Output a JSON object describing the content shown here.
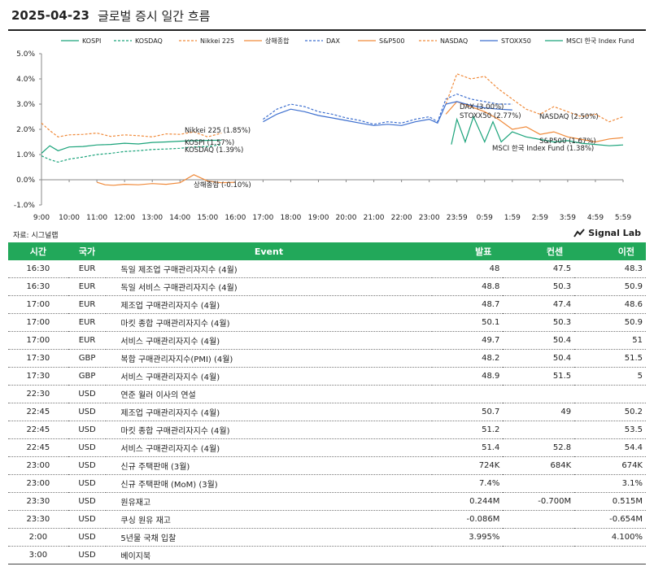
{
  "header": {
    "date": "2025-04-23",
    "title": "글로벌 증시 일간 흐름"
  },
  "source_label": "자료: 시그널랩",
  "brand": "Signal Lab",
  "chart_data": {
    "type": "line",
    "x_ticks": [
      "9:00",
      "10:00",
      "11:00",
      "12:00",
      "13:00",
      "14:00",
      "15:00",
      "16:00",
      "17:00",
      "18:00",
      "19:00",
      "20:00",
      "21:00",
      "22:00",
      "23:00",
      "23:59",
      "0:59",
      "1:59",
      "2:59",
      "3:59",
      "4:59",
      "5:59"
    ],
    "y_ticks": [
      "-1.0%",
      "0.0%",
      "1.0%",
      "2.0%",
      "3.0%",
      "4.0%",
      "5.0%"
    ],
    "ylim": [
      -1.0,
      5.0
    ],
    "xlim": [
      0,
      21
    ],
    "grid": false,
    "legend_position": "top",
    "series": [
      {
        "name": "KOSPI",
        "color": "#1aa37a",
        "style": "solid",
        "x": [
          0,
          0.3,
          0.6,
          1,
          1.5,
          2,
          2.5,
          3,
          3.5,
          4,
          4.5,
          5,
          5.5,
          6,
          6.5
        ],
        "y": [
          1.05,
          1.35,
          1.15,
          1.3,
          1.32,
          1.38,
          1.4,
          1.45,
          1.42,
          1.48,
          1.5,
          1.53,
          1.55,
          1.56,
          1.57
        ],
        "end_label": "KOSPI (1.57%)"
      },
      {
        "name": "KOSDAQ",
        "color": "#1aa37a",
        "style": "dash",
        "x": [
          0,
          0.3,
          0.6,
          1,
          1.5,
          2,
          2.5,
          3,
          3.5,
          4,
          4.5,
          5,
          5.5,
          6,
          6.5
        ],
        "y": [
          0.95,
          0.8,
          0.7,
          0.82,
          0.9,
          1.0,
          1.05,
          1.12,
          1.15,
          1.2,
          1.22,
          1.25,
          1.3,
          1.32,
          1.39
        ],
        "end_label": "KOSDAQ (1.39%)"
      },
      {
        "name": "Nikkei 225",
        "color": "#f08a3a",
        "style": "dash",
        "x": [
          0,
          0.3,
          0.6,
          1,
          1.5,
          2,
          2.5,
          3,
          3.5,
          4,
          4.5,
          5,
          5.5,
          6,
          6.5
        ],
        "y": [
          2.25,
          1.95,
          1.7,
          1.78,
          1.8,
          1.85,
          1.72,
          1.78,
          1.75,
          1.7,
          1.82,
          1.8,
          1.9,
          1.7,
          1.85
        ],
        "end_label": "Nikkei 225 (1.85%)"
      },
      {
        "name": "상해종합",
        "color": "#f08a3a",
        "style": "solid",
        "x": [
          2,
          2.3,
          2.6,
          3,
          3.5,
          4,
          4.5,
          5,
          5.5,
          6,
          6.5,
          7
        ],
        "y": [
          -0.1,
          -0.2,
          -0.22,
          -0.18,
          -0.2,
          -0.15,
          -0.18,
          -0.12,
          0.2,
          -0.05,
          -0.12,
          -0.1
        ],
        "end_label": "상해종합 (-0.10%)"
      },
      {
        "name": "DAX",
        "color": "#3d6fcf",
        "style": "dash",
        "x": [
          8,
          8.5,
          9,
          9.5,
          10,
          10.5,
          11,
          11.5,
          12,
          12.5,
          13,
          13.5,
          14,
          14.3,
          14.6,
          15,
          15.5,
          16,
          16.5,
          17
        ],
        "y": [
          2.4,
          2.8,
          3.0,
          2.9,
          2.7,
          2.6,
          2.45,
          2.35,
          2.2,
          2.3,
          2.25,
          2.4,
          2.5,
          2.3,
          3.2,
          3.4,
          3.2,
          3.1,
          3.0,
          3.0
        ],
        "end_label": "DAX (3.00%)"
      },
      {
        "name": "S&P500",
        "color": "#f08a3a",
        "style": "solid",
        "x": [
          14.6,
          15,
          15.5,
          16,
          16.5,
          17,
          17.5,
          18,
          18.5,
          19,
          19.5,
          20,
          20.5,
          21
        ],
        "y": [
          2.6,
          3.1,
          2.9,
          2.7,
          2.4,
          2.0,
          2.1,
          1.8,
          1.9,
          1.7,
          1.6,
          1.5,
          1.62,
          1.67
        ],
        "end_label": "S&P500 (1.67%)"
      },
      {
        "name": "NASDAQ",
        "color": "#f08a3a",
        "style": "dash",
        "x": [
          14.6,
          15,
          15.5,
          16,
          16.5,
          17,
          17.5,
          18,
          18.5,
          19,
          19.5,
          20,
          20.5,
          21
        ],
        "y": [
          3.0,
          4.2,
          4.0,
          4.1,
          3.6,
          3.2,
          2.8,
          2.6,
          2.9,
          2.7,
          2.5,
          2.6,
          2.3,
          2.5
        ],
        "end_label": "NASDAQ (2.50%)"
      },
      {
        "name": "STOXX50",
        "color": "#3d6fcf",
        "style": "solid",
        "x": [
          8,
          8.5,
          9,
          9.5,
          10,
          10.5,
          11,
          11.5,
          12,
          12.5,
          13,
          13.5,
          14,
          14.3,
          14.6,
          15,
          15.5,
          16,
          16.5,
          17
        ],
        "y": [
          2.3,
          2.6,
          2.8,
          2.7,
          2.55,
          2.45,
          2.35,
          2.25,
          2.15,
          2.2,
          2.15,
          2.3,
          2.4,
          2.25,
          3.0,
          3.1,
          2.95,
          2.85,
          2.8,
          2.77
        ],
        "end_label": "STOXX50 (2.77%)"
      },
      {
        "name": "MSCI 한국 Index Fund",
        "color": "#1aa37a",
        "style": "solid",
        "x": [
          14.8,
          15,
          15.3,
          15.6,
          16,
          16.3,
          16.6,
          17,
          17.5,
          18,
          18.5,
          19,
          19.5,
          20,
          20.5,
          21
        ],
        "y": [
          1.4,
          2.4,
          1.5,
          2.5,
          1.5,
          2.3,
          1.5,
          1.9,
          1.7,
          1.6,
          1.5,
          1.55,
          1.45,
          1.4,
          1.35,
          1.38
        ],
        "end_label": "MSCI 한국 Index Fund (1.38%)"
      }
    ]
  },
  "table": {
    "headers": [
      "시간",
      "국가",
      "Event",
      "발표",
      "컨센",
      "이전"
    ],
    "rows": [
      [
        "16:30",
        "EUR",
        "독일 제조업 구매관리자지수 (4월)",
        "48",
        "47.5",
        "48.3"
      ],
      [
        "16:30",
        "EUR",
        "독일 서비스 구매관리자지수 (4월)",
        "48.8",
        "50.3",
        "50.9"
      ],
      [
        "17:00",
        "EUR",
        "제조업 구매관리자지수 (4월)",
        "48.7",
        "47.4",
        "48.6"
      ],
      [
        "17:00",
        "EUR",
        "마킷 종합 구매관리자지수 (4월)",
        "50.1",
        "50.3",
        "50.9"
      ],
      [
        "17:00",
        "EUR",
        "서비스 구매관리자지수 (4월)",
        "49.7",
        "50.4",
        "51"
      ],
      [
        "17:30",
        "GBP",
        "복합 구매관리자지수(PMI) (4월)",
        "48.2",
        "50.4",
        "51.5"
      ],
      [
        "17:30",
        "GBP",
        "서비스 구매관리자지수 (4월)",
        "48.9",
        "51.5",
        "5"
      ],
      [
        "22:30",
        "USD",
        "연준 월러 이사의 연설",
        "",
        "",
        ""
      ],
      [
        "22:45",
        "USD",
        "제조업 구매관리자지수 (4월)",
        "50.7",
        "49",
        "50.2"
      ],
      [
        "22:45",
        "USD",
        "마킷 종합 구매관리자지수 (4월)",
        "51.2",
        "",
        "53.5"
      ],
      [
        "22:45",
        "USD",
        "서비스 구매관리자지수 (4월)",
        "51.4",
        "52.8",
        "54.4"
      ],
      [
        "23:00",
        "USD",
        "신규 주택판매 (3월)",
        "724K",
        "684K",
        "674K"
      ],
      [
        "23:00",
        "USD",
        "신규 주택판매 (MoM) (3월)",
        "7.4%",
        "",
        "3.1%"
      ],
      [
        "23:30",
        "USD",
        "원유재고",
        "0.244M",
        "-0.700M",
        "0.515M"
      ],
      [
        "23:30",
        "USD",
        "쿠싱 원유 재고",
        "-0.086M",
        "",
        "-0.654M"
      ],
      [
        "2:00",
        "USD",
        "5년물 국채 입찰",
        "3.995%",
        "",
        "4.100%"
      ],
      [
        "3:00",
        "USD",
        "베이지북",
        "",
        "",
        ""
      ]
    ]
  }
}
